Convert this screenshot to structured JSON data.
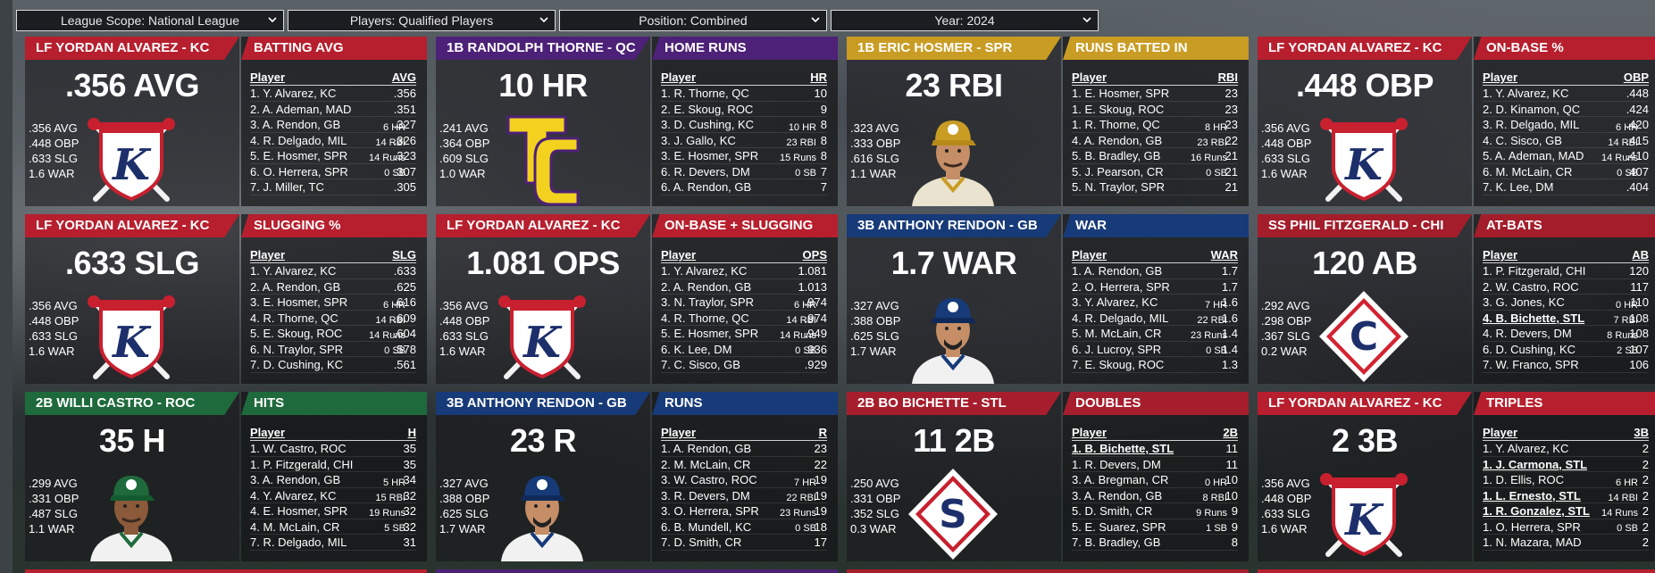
{
  "filters": {
    "league": "League Scope: National League",
    "players": "Players: Qualified Players",
    "position": "Position: Combined",
    "year": "Year: 2024"
  },
  "colors": {
    "kc_red": "#b71f2e",
    "qc_purple": "#4d2177",
    "spr_gold": "#c99c24",
    "gb_blue": "#173a78",
    "roc_green": "#1f6a3c",
    "chi_red": "#a41d2b",
    "stl_red": "#a61e2d"
  },
  "cards": [
    {
      "player_header": "LF YORDAN ALVAREZ - KC",
      "stat_header": "BATTING AVG",
      "big": ".356 AVG",
      "left_stats": [
        ".356 AVG",
        ".448 OBP",
        ".633 SLG",
        "1.6 WAR"
      ],
      "right_stats": [
        "6 HR",
        "14 RBI",
        "14 Runs",
        "0 SB"
      ],
      "col_player": "Player",
      "col_stat": "AVG",
      "rows": [
        {
          "name": "1. Y. Alvarez, KC",
          "val": ".356"
        },
        {
          "name": "2. A. Ademan, MAD",
          "val": ".351"
        },
        {
          "name": "3. A. Rendon, GB",
          "val": ".327"
        },
        {
          "name": "4. R. Delgado, MIL",
          "val": ".326"
        },
        {
          "name": "5. E. Hosmer, SPR",
          "val": ".323"
        },
        {
          "name": "6. O. Herrera, SPR",
          "val": ".307"
        },
        {
          "name": "7. J. Miller, TC",
          "val": ".305"
        }
      ]
    },
    {
      "player_header": "1B RANDOLPH THORNE - QC",
      "stat_header": "HOME RUNS",
      "big": "10 HR",
      "left_stats": [
        ".241 AVG",
        ".364 OBP",
        ".609 SLG",
        "1.0 WAR"
      ],
      "right_stats": [
        "10 HR",
        "23 RBI",
        "15 Runs",
        "0 SB"
      ],
      "col_player": "Player",
      "col_stat": "HR",
      "rows": [
        {
          "name": "1. R. Thorne, QC",
          "val": "10"
        },
        {
          "name": "2. E. Skoug, ROC",
          "val": "9"
        },
        {
          "name": "3. D. Cushing, KC",
          "val": "8"
        },
        {
          "name": "3. J. Gallo, KC",
          "val": "8"
        },
        {
          "name": "3. E. Hosmer, SPR",
          "val": "8"
        },
        {
          "name": "6. R. Devers, DM",
          "val": "7"
        },
        {
          "name": "6. A. Rendon, GB",
          "val": "7"
        }
      ]
    },
    {
      "player_header": "1B ERIC HOSMER - SPR",
      "stat_header": "RUNS BATTED IN",
      "big": "23 RBI",
      "left_stats": [
        ".323 AVG",
        ".333 OBP",
        ".616 SLG",
        "1.1 WAR"
      ],
      "right_stats": [
        "8 HR",
        "23 RBI",
        "16 Runs",
        "0 SB"
      ],
      "col_player": "Player",
      "col_stat": "RBI",
      "rows": [
        {
          "name": "1. E. Hosmer, SPR",
          "val": "23"
        },
        {
          "name": "1. E. Skoug, ROC",
          "val": "23"
        },
        {
          "name": "1. R. Thorne, QC",
          "val": "23"
        },
        {
          "name": "4. A. Rendon, GB",
          "val": "22"
        },
        {
          "name": "5. B. Bradley, GB",
          "val": "21"
        },
        {
          "name": "5. J. Pearson, CR",
          "val": "21"
        },
        {
          "name": "5. N. Traylor, SPR",
          "val": "21"
        }
      ]
    },
    {
      "player_header": "LF YORDAN ALVAREZ - KC",
      "stat_header": "ON-BASE %",
      "big": ".448 OBP",
      "left_stats": [
        ".356 AVG",
        ".448 OBP",
        ".633 SLG",
        "1.6 WAR"
      ],
      "right_stats": [
        "6 HR",
        "14 RBI",
        "14 Runs",
        "0 SB"
      ],
      "col_player": "Player",
      "col_stat": "OBP",
      "rows": [
        {
          "name": "1. Y. Alvarez, KC",
          "val": ".448"
        },
        {
          "name": "2. D. Kinamon, QC",
          "val": ".424"
        },
        {
          "name": "3. R. Delgado, MIL",
          "val": ".420"
        },
        {
          "name": "4. C. Sisco, GB",
          "val": ".415"
        },
        {
          "name": "5. A. Ademan, MAD",
          "val": ".410"
        },
        {
          "name": "6. M. McLain, CR",
          "val": ".407"
        },
        {
          "name": "7. K. Lee, DM",
          "val": ".404"
        }
      ]
    },
    {
      "player_header": "LF YORDAN ALVAREZ - KC",
      "stat_header": "SLUGGING %",
      "big": ".633 SLG",
      "left_stats": [
        ".356 AVG",
        ".448 OBP",
        ".633 SLG",
        "1.6 WAR"
      ],
      "right_stats": [
        "6 HR",
        "14 RBI",
        "14 Runs",
        "0 SB"
      ],
      "col_player": "Player",
      "col_stat": "SLG",
      "rows": [
        {
          "name": "1. Y. Alvarez, KC",
          "val": ".633"
        },
        {
          "name": "2. A. Rendon, GB",
          "val": ".625"
        },
        {
          "name": "3. E. Hosmer, SPR",
          "val": ".616"
        },
        {
          "name": "4. R. Thorne, QC",
          "val": ".609"
        },
        {
          "name": "5. E. Skoug, ROC",
          "val": ".604"
        },
        {
          "name": "6. N. Traylor, SPR",
          "val": ".578"
        },
        {
          "name": "7. D. Cushing, KC",
          "val": ".561"
        }
      ]
    },
    {
      "player_header": "LF YORDAN ALVAREZ - KC",
      "stat_header": "ON-BASE + SLUGGING",
      "big": "1.081 OPS",
      "left_stats": [
        ".356 AVG",
        ".448 OBP",
        ".633 SLG",
        "1.6 WAR"
      ],
      "right_stats": [
        "6 HR",
        "14 RBI",
        "14 Runs",
        "0 SB"
      ],
      "col_player": "Player",
      "col_stat": "OPS",
      "rows": [
        {
          "name": "1. Y. Alvarez, KC",
          "val": "1.081"
        },
        {
          "name": "2. A. Rendon, GB",
          "val": "1.013"
        },
        {
          "name": "3. N. Traylor, SPR",
          "val": ".974"
        },
        {
          "name": "4. R. Thorne, QC",
          "val": ".974"
        },
        {
          "name": "5. E. Hosmer, SPR",
          "val": ".949"
        },
        {
          "name": "6. K. Lee, DM",
          "val": ".936"
        },
        {
          "name": "7. C. Sisco, GB",
          "val": ".929"
        }
      ]
    },
    {
      "player_header": "3B ANTHONY RENDON - GB",
      "stat_header": "WAR",
      "big": "1.7 WAR",
      "left_stats": [
        ".327 AVG",
        ".388 OBP",
        ".625 SLG",
        "1.7 WAR"
      ],
      "right_stats": [
        "7 HR",
        "22 RBI",
        "23 Runs",
        "0 SB"
      ],
      "col_player": "Player",
      "col_stat": "WAR",
      "rows": [
        {
          "name": "1. A. Rendon, GB",
          "val": "1.7"
        },
        {
          "name": "2. O. Herrera, SPR",
          "val": "1.7"
        },
        {
          "name": "3. Y. Alvarez, KC",
          "val": "1.6"
        },
        {
          "name": "4. R. Delgado, MIL",
          "val": "1.6"
        },
        {
          "name": "5. M. McLain, CR",
          "val": "1.4"
        },
        {
          "name": "6. J. Lucroy, SPR",
          "val": "1.4"
        },
        {
          "name": "7. E. Skoug, ROC",
          "val": "1.3"
        }
      ]
    },
    {
      "player_header": "SS PHIL FITZGERALD - CHI",
      "stat_header": "AT-BATS",
      "big": "120 AB",
      "left_stats": [
        ".292 AVG",
        ".298 OBP",
        ".367 SLG",
        "0.2 WAR"
      ],
      "right_stats": [
        "0 HR",
        "7 RBI",
        "8 Runs",
        "2 SB"
      ],
      "col_player": "Player",
      "col_stat": "AB",
      "rows": [
        {
          "name": "1. P. Fitzgerald, CHI",
          "val": "120"
        },
        {
          "name": "2. W. Castro, ROC",
          "val": "117"
        },
        {
          "name": "3. G. Jones, KC",
          "val": "110"
        },
        {
          "name": "4. B. Bichette, STL",
          "val": "108",
          "link": true
        },
        {
          "name": "4. R. Devers, DM",
          "val": "108"
        },
        {
          "name": "6. D. Cushing, KC",
          "val": "107"
        },
        {
          "name": "7. W. Franco, SPR",
          "val": "106"
        }
      ]
    },
    {
      "player_header": "2B WILLI CASTRO - ROC",
      "stat_header": "HITS",
      "big": "35 H",
      "left_stats": [
        ".299 AVG",
        ".331 OBP",
        ".487 SLG",
        "1.1 WAR"
      ],
      "right_stats": [
        "5 HR",
        "15 RBI",
        "19 Runs",
        "5 SB"
      ],
      "col_player": "Player",
      "col_stat": "H",
      "rows": [
        {
          "name": "1. W. Castro, ROC",
          "val": "35"
        },
        {
          "name": "1. P. Fitzgerald, CHI",
          "val": "35"
        },
        {
          "name": "3. A. Rendon, GB",
          "val": "34"
        },
        {
          "name": "4. Y. Alvarez, KC",
          "val": "32"
        },
        {
          "name": "4. E. Hosmer, SPR",
          "val": "32"
        },
        {
          "name": "4. M. McLain, CR",
          "val": "32"
        },
        {
          "name": "7. R. Delgado, MIL",
          "val": "31"
        }
      ]
    },
    {
      "player_header": "3B ANTHONY RENDON - GB",
      "stat_header": "RUNS",
      "big": "23 R",
      "left_stats": [
        ".327 AVG",
        ".388 OBP",
        ".625 SLG",
        "1.7 WAR"
      ],
      "right_stats": [
        "7 HR",
        "22 RBI",
        "23 Runs",
        "0 SB"
      ],
      "col_player": "Player",
      "col_stat": "R",
      "rows": [
        {
          "name": "1. A. Rendon, GB",
          "val": "23"
        },
        {
          "name": "2. M. McLain, CR",
          "val": "22"
        },
        {
          "name": "3. W. Castro, ROC",
          "val": "19"
        },
        {
          "name": "3. R. Devers, DM",
          "val": "19"
        },
        {
          "name": "3. O. Herrera, SPR",
          "val": "19"
        },
        {
          "name": "6. B. Mundell, KC",
          "val": "18"
        },
        {
          "name": "7. D. Smith, CR",
          "val": "17"
        }
      ]
    },
    {
      "player_header": "2B BO BICHETTE - STL",
      "stat_header": "DOUBLES",
      "big": "11 2B",
      "left_stats": [
        ".250 AVG",
        ".331 OBP",
        ".352 SLG",
        "0.3 WAR"
      ],
      "right_stats": [
        "0 HR",
        "8 RBI",
        "9 Runs",
        "1 SB"
      ],
      "col_player": "Player",
      "col_stat": "2B",
      "rows": [
        {
          "name": "1. B. Bichette, STL",
          "val": "11",
          "link": true
        },
        {
          "name": "1. R. Devers, DM",
          "val": "11"
        },
        {
          "name": "3. A. Bregman, CR",
          "val": "10"
        },
        {
          "name": "3. A. Rendon, GB",
          "val": "10"
        },
        {
          "name": "5. D. Smith, CR",
          "val": "9"
        },
        {
          "name": "5. E. Suarez, SPR",
          "val": "9"
        },
        {
          "name": "7. B. Bradley, GB",
          "val": "8"
        }
      ]
    },
    {
      "player_header": "LF YORDAN ALVAREZ - KC",
      "stat_header": "TRIPLES",
      "big": "2 3B",
      "left_stats": [
        ".356 AVG",
        ".448 OBP",
        ".633 SLG",
        "1.6 WAR"
      ],
      "right_stats": [
        "6 HR",
        "14 RBI",
        "14 Runs",
        "0 SB"
      ],
      "col_player": "Player",
      "col_stat": "3B",
      "rows": [
        {
          "name": "1. Y. Alvarez, KC",
          "val": "2"
        },
        {
          "name": "1. J. Carmona, STL",
          "val": "2",
          "link": true
        },
        {
          "name": "1. D. Ellis, ROC",
          "val": "2"
        },
        {
          "name": "1. L. Ernesto, STL",
          "val": "2",
          "link": true
        },
        {
          "name": "1. R. Gonzalez, STL",
          "val": "2",
          "link": true
        },
        {
          "name": "1. O. Herrera, SPR",
          "val": "2"
        },
        {
          "name": "1. N. Mazara, MAD",
          "val": "2"
        }
      ]
    }
  ]
}
